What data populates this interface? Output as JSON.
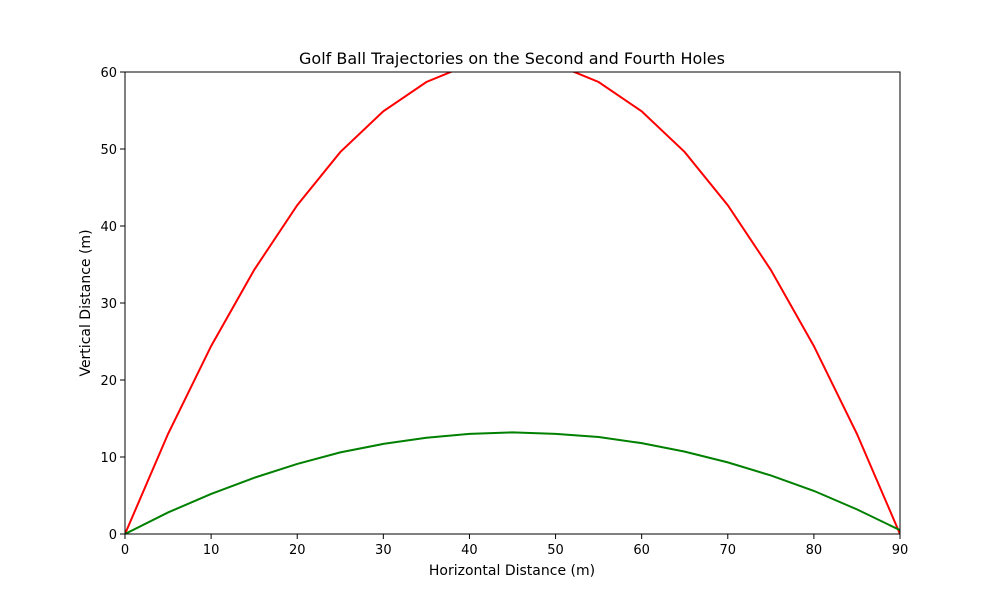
{
  "chart_data": {
    "type": "line",
    "title": "Golf Ball Trajectories on the Second and Fourth Holes",
    "xlabel": "Horizontal Distance (m)",
    "ylabel": "Vertical Distance (m)",
    "x": [
      0,
      5,
      10,
      15,
      20,
      25,
      30,
      35,
      40,
      45,
      50,
      55,
      60,
      65,
      70,
      75,
      80,
      85,
      90
    ],
    "series": [
      {
        "color": "#ff0000",
        "values": [
          0,
          13.0,
          24.4,
          34.3,
          42.7,
          49.6,
          54.9,
          58.7,
          61.0,
          61.8,
          61.0,
          58.7,
          54.9,
          49.6,
          42.7,
          34.3,
          24.4,
          13.0,
          0
        ]
      },
      {
        "color": "#008000",
        "values": [
          0,
          2.8,
          5.2,
          7.3,
          9.1,
          10.6,
          11.7,
          12.5,
          13.0,
          13.2,
          13.0,
          12.6,
          11.8,
          10.7,
          9.3,
          7.6,
          5.6,
          3.2,
          0.5
        ]
      }
    ],
    "xlim": [
      0,
      90
    ],
    "xticks": [
      0,
      10,
      20,
      30,
      40,
      50,
      60,
      70,
      80,
      90
    ],
    "ylim": [
      0,
      60
    ],
    "yticks": [
      0,
      10,
      20,
      30,
      40,
      50,
      60
    ]
  }
}
